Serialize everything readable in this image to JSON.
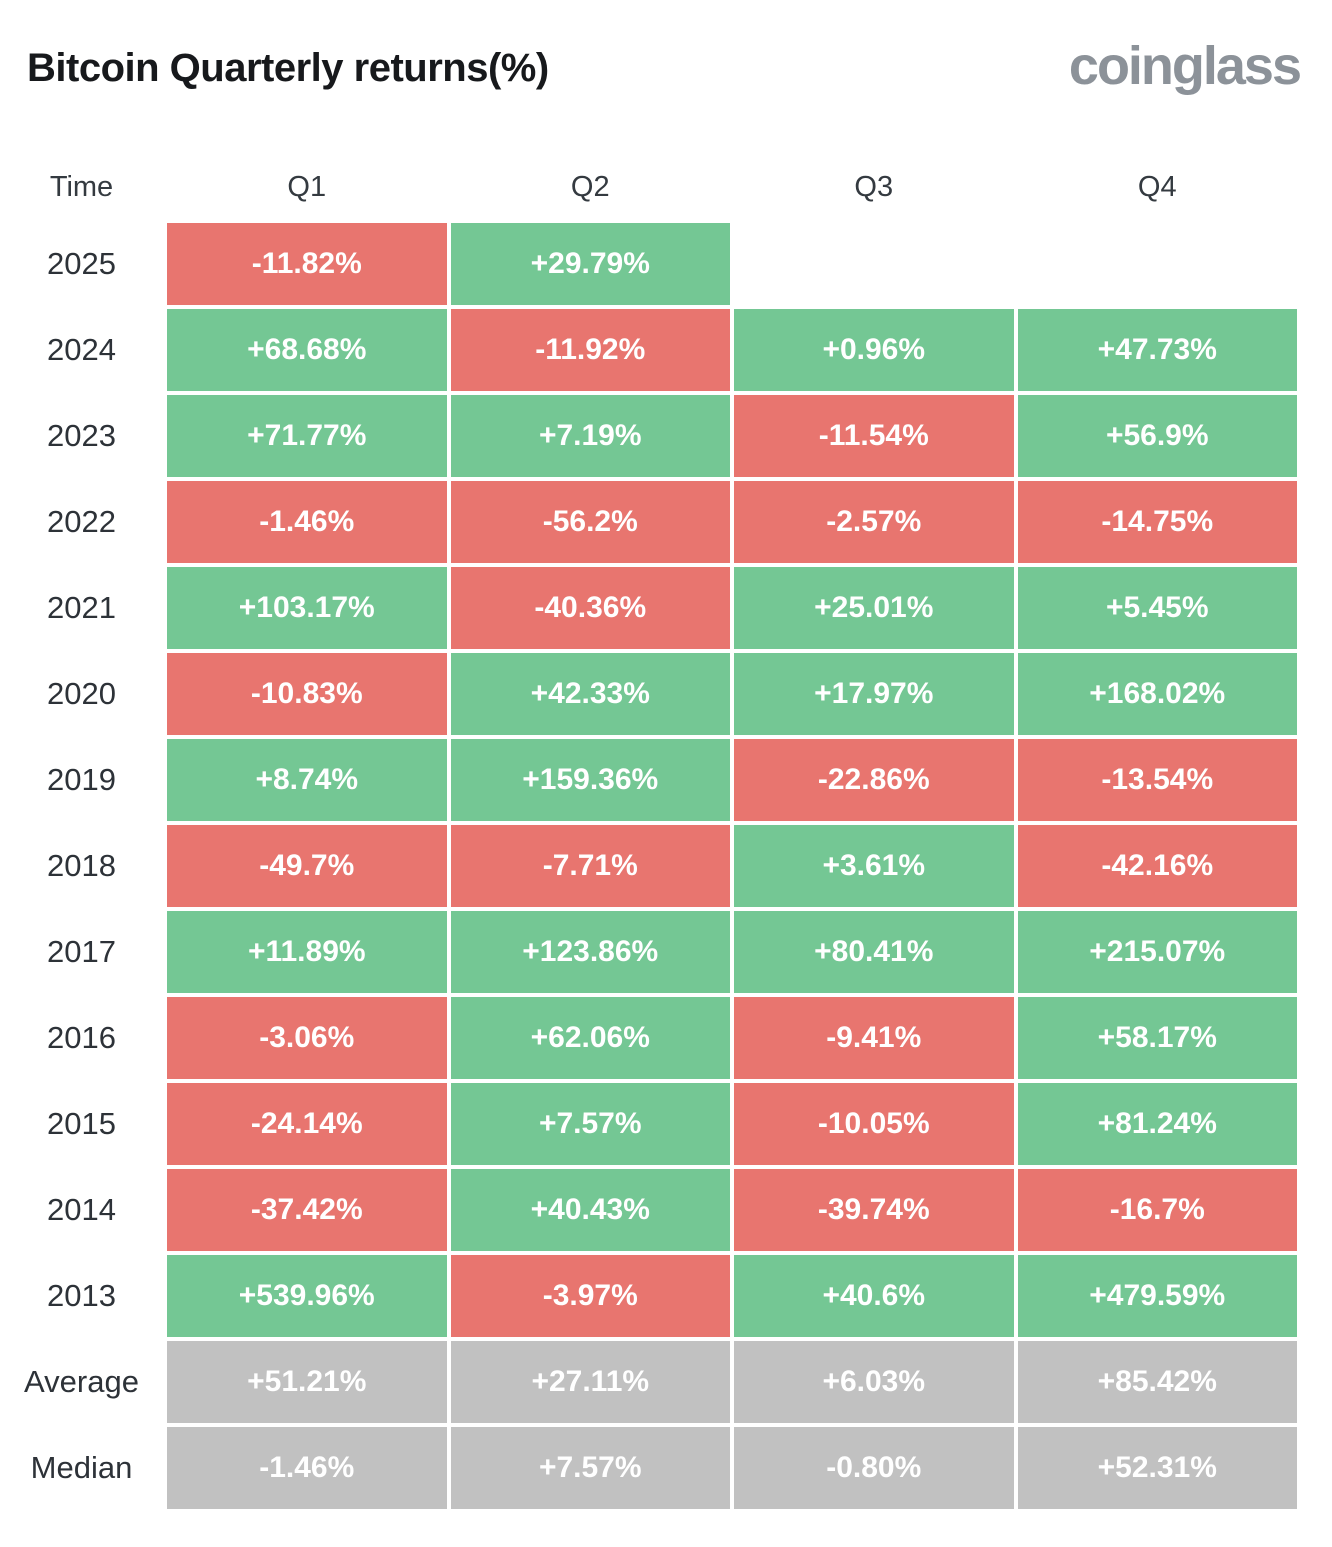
{
  "title": "Bitcoin Quarterly returns(%)",
  "brand": "coinglass",
  "colors": {
    "positive": "#74c794",
    "negative": "#e8756f",
    "summary": "#c1c1c1",
    "title_text": "#17191c",
    "header_text": "#343a40",
    "brand_text": "#8c9299",
    "cell_text": "#ffffff"
  },
  "table": {
    "headers": [
      "Time",
      "Q1",
      "Q2",
      "Q3",
      "Q4"
    ],
    "rows": [
      {
        "label": "2025",
        "cells": [
          {
            "value": "-11.82%",
            "type": "neg"
          },
          {
            "value": "+29.79%",
            "type": "pos"
          },
          {
            "value": "",
            "type": "empty"
          },
          {
            "value": "",
            "type": "empty"
          }
        ]
      },
      {
        "label": "2024",
        "cells": [
          {
            "value": "+68.68%",
            "type": "pos"
          },
          {
            "value": "-11.92%",
            "type": "neg"
          },
          {
            "value": "+0.96%",
            "type": "pos"
          },
          {
            "value": "+47.73%",
            "type": "pos"
          }
        ]
      },
      {
        "label": "2023",
        "cells": [
          {
            "value": "+71.77%",
            "type": "pos"
          },
          {
            "value": "+7.19%",
            "type": "pos"
          },
          {
            "value": "-11.54%",
            "type": "neg"
          },
          {
            "value": "+56.9%",
            "type": "pos"
          }
        ]
      },
      {
        "label": "2022",
        "cells": [
          {
            "value": "-1.46%",
            "type": "neg"
          },
          {
            "value": "-56.2%",
            "type": "neg"
          },
          {
            "value": "-2.57%",
            "type": "neg"
          },
          {
            "value": "-14.75%",
            "type": "neg"
          }
        ]
      },
      {
        "label": "2021",
        "cells": [
          {
            "value": "+103.17%",
            "type": "pos"
          },
          {
            "value": "-40.36%",
            "type": "neg"
          },
          {
            "value": "+25.01%",
            "type": "pos"
          },
          {
            "value": "+5.45%",
            "type": "pos"
          }
        ]
      },
      {
        "label": "2020",
        "cells": [
          {
            "value": "-10.83%",
            "type": "neg"
          },
          {
            "value": "+42.33%",
            "type": "pos"
          },
          {
            "value": "+17.97%",
            "type": "pos"
          },
          {
            "value": "+168.02%",
            "type": "pos"
          }
        ]
      },
      {
        "label": "2019",
        "cells": [
          {
            "value": "+8.74%",
            "type": "pos"
          },
          {
            "value": "+159.36%",
            "type": "pos"
          },
          {
            "value": "-22.86%",
            "type": "neg"
          },
          {
            "value": "-13.54%",
            "type": "neg"
          }
        ]
      },
      {
        "label": "2018",
        "cells": [
          {
            "value": "-49.7%",
            "type": "neg"
          },
          {
            "value": "-7.71%",
            "type": "neg"
          },
          {
            "value": "+3.61%",
            "type": "pos"
          },
          {
            "value": "-42.16%",
            "type": "neg"
          }
        ]
      },
      {
        "label": "2017",
        "cells": [
          {
            "value": "+11.89%",
            "type": "pos"
          },
          {
            "value": "+123.86%",
            "type": "pos"
          },
          {
            "value": "+80.41%",
            "type": "pos"
          },
          {
            "value": "+215.07%",
            "type": "pos"
          }
        ]
      },
      {
        "label": "2016",
        "cells": [
          {
            "value": "-3.06%",
            "type": "neg"
          },
          {
            "value": "+62.06%",
            "type": "pos"
          },
          {
            "value": "-9.41%",
            "type": "neg"
          },
          {
            "value": "+58.17%",
            "type": "pos"
          }
        ]
      },
      {
        "label": "2015",
        "cells": [
          {
            "value": "-24.14%",
            "type": "neg"
          },
          {
            "value": "+7.57%",
            "type": "pos"
          },
          {
            "value": "-10.05%",
            "type": "neg"
          },
          {
            "value": "+81.24%",
            "type": "pos"
          }
        ]
      },
      {
        "label": "2014",
        "cells": [
          {
            "value": "-37.42%",
            "type": "neg"
          },
          {
            "value": "+40.43%",
            "type": "pos"
          },
          {
            "value": "-39.74%",
            "type": "neg"
          },
          {
            "value": "-16.7%",
            "type": "neg"
          }
        ]
      },
      {
        "label": "2013",
        "cells": [
          {
            "value": "+539.96%",
            "type": "pos"
          },
          {
            "value": "-3.97%",
            "type": "neg"
          },
          {
            "value": "+40.6%",
            "type": "pos"
          },
          {
            "value": "+479.59%",
            "type": "pos"
          }
        ]
      },
      {
        "label": "Average",
        "cells": [
          {
            "value": "+51.21%",
            "type": "sum"
          },
          {
            "value": "+27.11%",
            "type": "sum"
          },
          {
            "value": "+6.03%",
            "type": "sum"
          },
          {
            "value": "+85.42%",
            "type": "sum"
          }
        ]
      },
      {
        "label": "Median",
        "cells": [
          {
            "value": "-1.46%",
            "type": "sum"
          },
          {
            "value": "+7.57%",
            "type": "sum"
          },
          {
            "value": "-0.80%",
            "type": "sum"
          },
          {
            "value": "+52.31%",
            "type": "sum"
          }
        ]
      }
    ]
  },
  "chart_data": {
    "type": "heatmap",
    "title": "Bitcoin Quarterly returns(%)",
    "unit": "%",
    "columns": [
      "Q1",
      "Q2",
      "Q3",
      "Q4"
    ],
    "rows": [
      "2025",
      "2024",
      "2023",
      "2022",
      "2021",
      "2020",
      "2019",
      "2018",
      "2017",
      "2016",
      "2015",
      "2014",
      "2013",
      "Average",
      "Median"
    ],
    "values": [
      [
        -11.82,
        29.79,
        null,
        null
      ],
      [
        68.68,
        -11.92,
        0.96,
        47.73
      ],
      [
        71.77,
        7.19,
        -11.54,
        56.9
      ],
      [
        -1.46,
        -56.2,
        -2.57,
        -14.75
      ],
      [
        103.17,
        -40.36,
        25.01,
        5.45
      ],
      [
        -10.83,
        42.33,
        17.97,
        168.02
      ],
      [
        8.74,
        159.36,
        -22.86,
        -13.54
      ],
      [
        -49.7,
        -7.71,
        3.61,
        -42.16
      ],
      [
        11.89,
        123.86,
        80.41,
        215.07
      ],
      [
        -3.06,
        62.06,
        -9.41,
        58.17
      ],
      [
        -24.14,
        7.57,
        -10.05,
        81.24
      ],
      [
        -37.42,
        40.43,
        -39.74,
        -16.7
      ],
      [
        539.96,
        -3.97,
        40.6,
        479.59
      ],
      [
        51.21,
        27.11,
        6.03,
        85.42
      ],
      [
        -1.46,
        7.57,
        -0.8,
        52.31
      ]
    ],
    "legend": "green = positive return, red = negative return, gray = summary rows",
    "color_positive": "#74c794",
    "color_negative": "#e8756f",
    "color_summary": "#c1c1c1"
  }
}
